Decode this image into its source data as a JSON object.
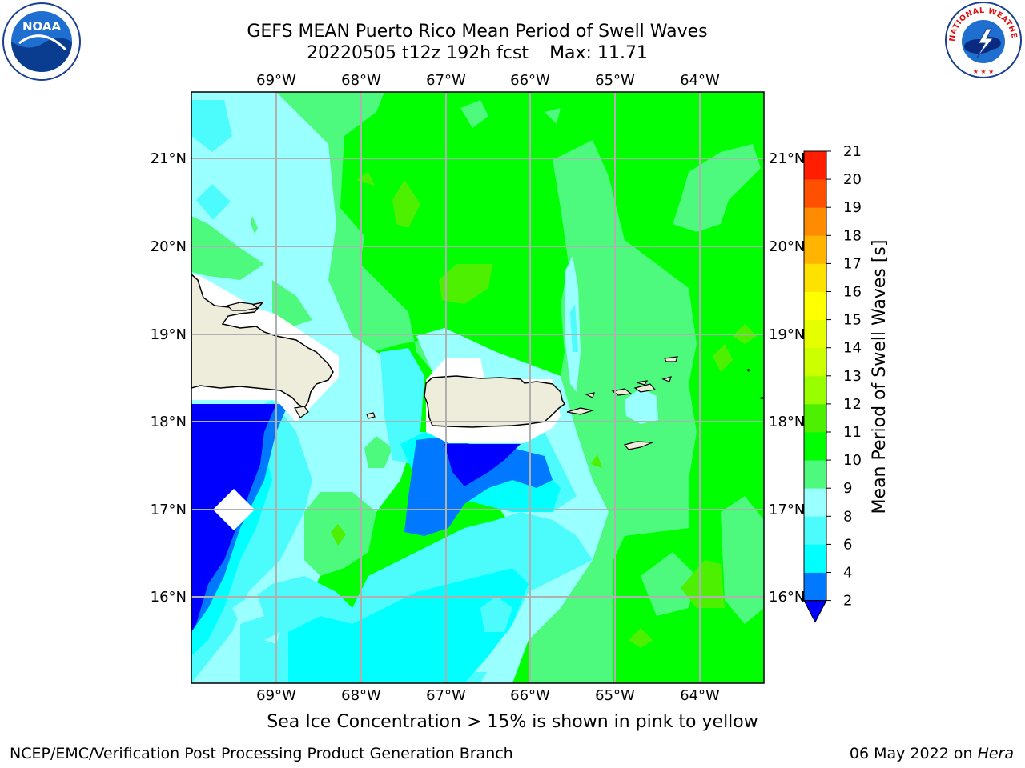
{
  "header": {
    "title_line1": "GEFS MEAN Puerto Rico Mean Period of Swell Waves",
    "title_line2_date": "20220505 t12z 192h fcst",
    "title_line2_max": "Max: 11.71"
  },
  "logos": {
    "left": "noaa-logo",
    "left_text": "NOAA",
    "right": "national-weather-service-logo",
    "right_text": "NATIONAL WEATHER SERVICE"
  },
  "map": {
    "lon_labels": [
      "69°W",
      "68°W",
      "67°W",
      "66°W",
      "65°W",
      "64°W"
    ],
    "lat_labels": [
      "21°N",
      "20°N",
      "19°N",
      "18°N",
      "17°N",
      "16°N"
    ],
    "land_color": "#eeecdb",
    "missing_color": "#ffffff",
    "grid_color": "#b0b0b0"
  },
  "colorbar": {
    "label": "Mean Period of Swell Waves [s]",
    "ticks": [
      "2",
      "4",
      "6",
      "8",
      "9",
      "10",
      "11",
      "12",
      "13",
      "14",
      "15",
      "16",
      "17",
      "18",
      "19",
      "20",
      "21"
    ],
    "extend_color": "#0000ff",
    "colors": [
      "#0078ff",
      "#00ffff",
      "#4cfcfc",
      "#99ffff",
      "#4dfa7d",
      "#00ff00",
      "#4cf000",
      "#99ff00",
      "#ccff00",
      "#e5ff00",
      "#ffff00",
      "#ffe100",
      "#ffb400",
      "#ff8c00",
      "#ff5000",
      "#ff1e00"
    ]
  },
  "footer": {
    "note": "Sea Ice Concentration > 15% is shown in pink to yellow",
    "credit": "NCEP/EMC/Verification Post Processing Product Generation Branch",
    "date": "06 May 2022 on ",
    "machine": "Hera"
  }
}
